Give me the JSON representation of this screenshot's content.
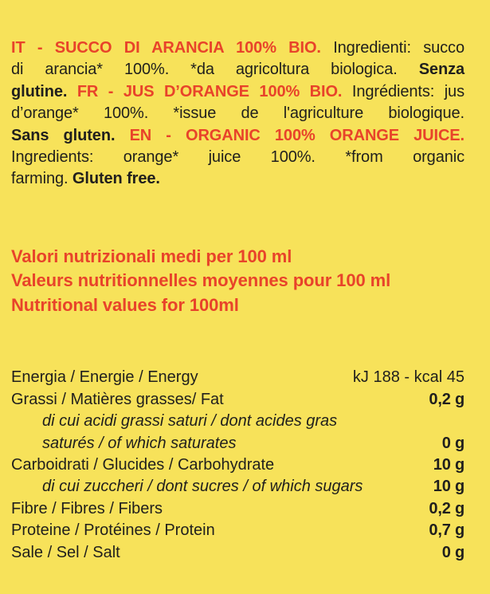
{
  "colors": {
    "background": "#F7E25A",
    "accent_red": "#E8432A",
    "text_black": "#201F1D"
  },
  "ingredients": {
    "lines": [
      {
        "segments": [
          {
            "text": "IT - SUCCO DI ARANCIA 100% BIO.",
            "style": "red-bold"
          },
          {
            "text": "Ingredienti: succo",
            "style": "regular"
          }
        ]
      },
      {
        "segments": [
          {
            "text": "di arancia* 100%. *da agricoltura biologica.",
            "style": "regular"
          },
          {
            "text": "Senza",
            "style": "bold"
          }
        ]
      },
      {
        "segments": [
          {
            "text": "glutine.",
            "style": "bold"
          },
          {
            "text": "FR - JUS D’ORANGE 100% BIO.",
            "style": "red-bold"
          },
          {
            "text": "Ingrédients: jus",
            "style": "regular"
          }
        ]
      },
      {
        "segments": [
          {
            "text": "d’orange* 100%. *issue de l'agriculture biologique.",
            "style": "regular"
          }
        ]
      },
      {
        "segments": [
          {
            "text": "Sans gluten.",
            "style": "bold"
          },
          {
            "text": "EN - ORGANIC 100% ORANGE JUICE.",
            "style": "red-bold"
          }
        ]
      },
      {
        "segments": [
          {
            "text": "Ingredients: orange* juice 100%. *from organic",
            "style": "regular"
          }
        ]
      },
      {
        "segments": [
          {
            "text": "farming.",
            "style": "regular"
          },
          {
            "text": "Gluten free.",
            "style": "bold"
          }
        ]
      }
    ]
  },
  "nutrition_title": {
    "lines": [
      "Valori nutrizionali medi per 100 ml",
      "Valeurs nutritionnelles moyennes pour 100 ml",
      "Nutritional values for 100ml"
    ]
  },
  "nutrition_table": {
    "rows": [
      {
        "label": "Energia / Energie / Energy",
        "value": "kJ 188 - kcal 45",
        "indent": false
      },
      {
        "label": "Grassi / Matières grasses/ Fat",
        "value": "0,2 g",
        "indent": false
      },
      {
        "label": "di cui acidi grassi saturi / dont acides gras saturés / of which saturates",
        "value": "0 g",
        "indent": true
      },
      {
        "label": "Carboidrati / Glucides / Carbohydrate",
        "value": "10 g",
        "indent": false
      },
      {
        "label": "di cui zuccheri / dont sucres / of which sugars",
        "value": "10 g",
        "indent": true
      },
      {
        "label": "Fibre / Fibres / Fibers",
        "value": "0,2 g",
        "indent": false
      },
      {
        "label": "Proteine / Protéines / Protein",
        "value": "0,7 g",
        "indent": false
      },
      {
        "label": "Sale / Sel / Salt",
        "value": "0 g",
        "indent": false
      }
    ]
  }
}
